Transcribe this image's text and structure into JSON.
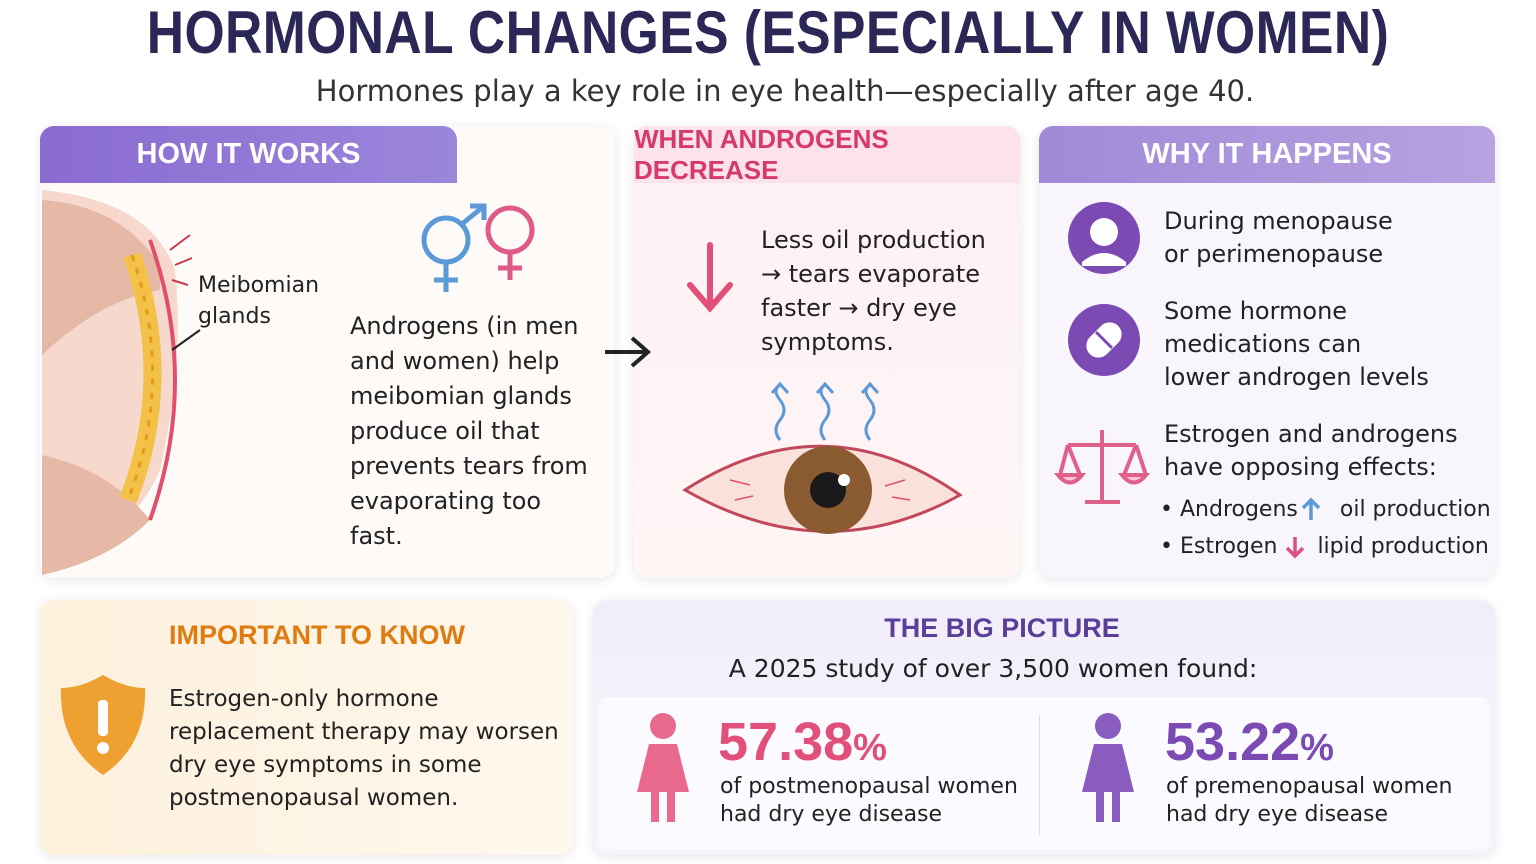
{
  "header": {
    "title": "HORMONAL CHANGES (ESPECIALLY IN WOMEN)",
    "subtitle": "Hormones play a key role in eye health—especially after age 40."
  },
  "how_it_works": {
    "heading": "HOW IT WORKS",
    "diagram_label": "Meibomian glands",
    "text": "Androgens (in men and women) help meibomian glands produce oil that prevents tears from evaporating too fast."
  },
  "when_androgens_decrease": {
    "heading": "WHEN ANDROGENS DECREASE",
    "text": "Less oil production → tears evaporate faster → dry eye symptoms."
  },
  "why_it_happens": {
    "heading": "WHY IT HAPPENS",
    "items": [
      "During menopause or perimenopause",
      "Some hormone medications can lower androgen levels",
      "Estrogen and androgens have opposing effects:"
    ],
    "effects": [
      {
        "subject": "Androgens",
        "result": "oil production"
      },
      {
        "subject": "Estrogen",
        "result": "lipid production"
      }
    ]
  },
  "important_to_know": {
    "heading": "IMPORTANT TO KNOW",
    "text": "Estrogen-only hormone replacement therapy may worsen dry eye symptoms in some postmenopausal women."
  },
  "big_picture": {
    "heading": "THE BIG PICTURE",
    "intro": "A 2025 study of over 3,500 women found:",
    "stats": [
      {
        "value": "57.38",
        "unit": "%",
        "text": "of postmenopausal women had dry eye disease"
      },
      {
        "value": "53.22",
        "unit": "%",
        "text": "of premenopausal women had dry eye disease"
      }
    ]
  }
}
